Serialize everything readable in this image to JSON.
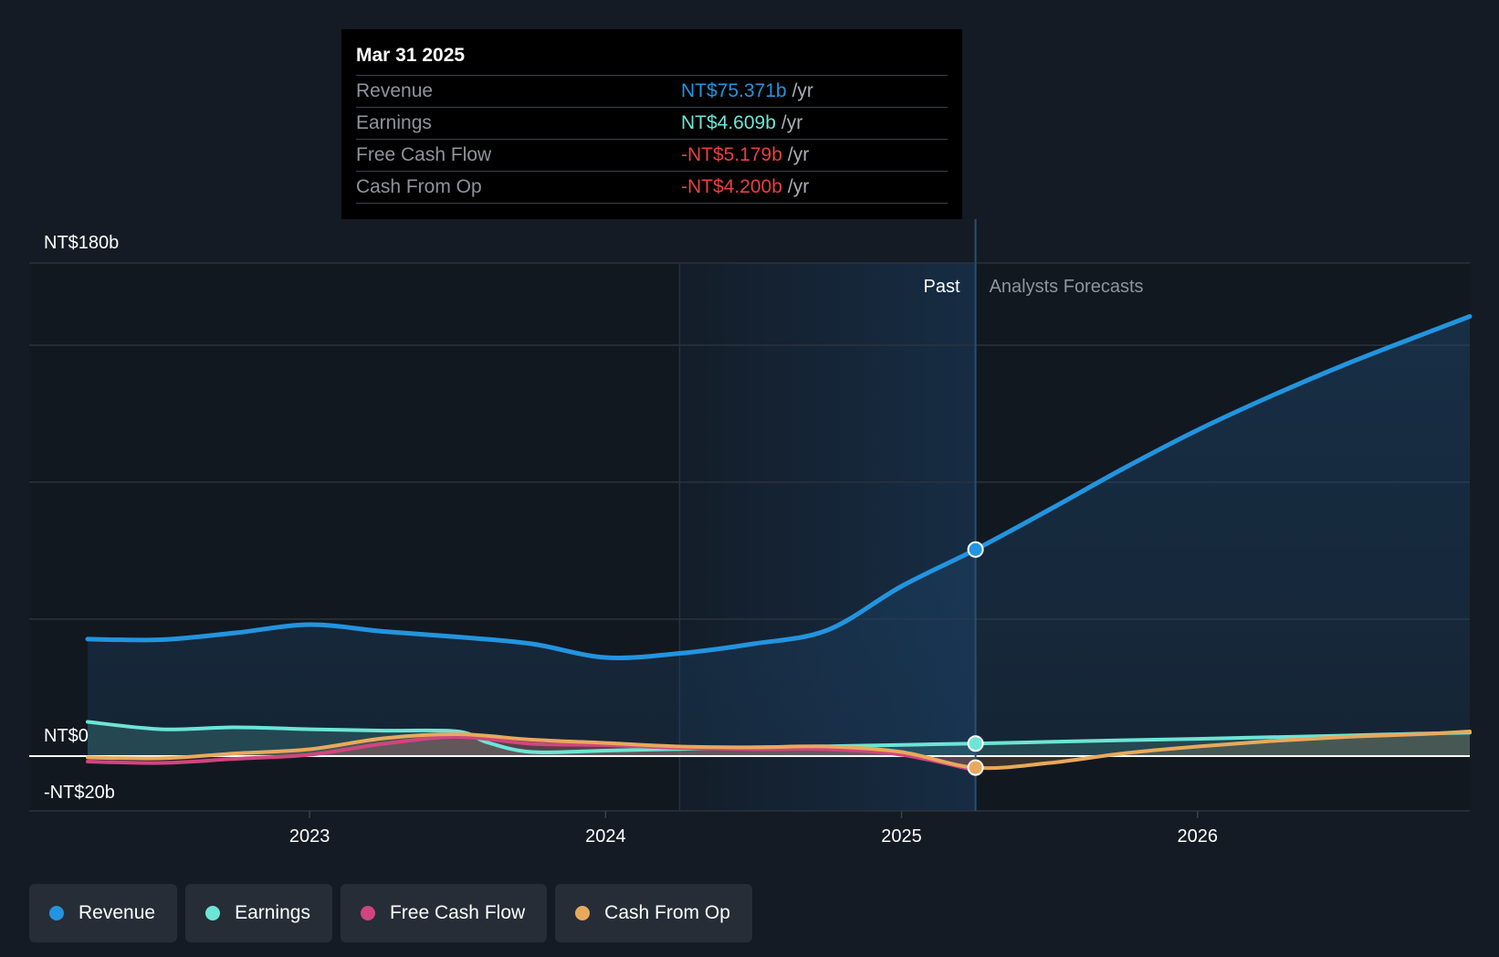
{
  "tooltip": {
    "date": "Mar 31 2025",
    "rows": [
      {
        "name": "Revenue",
        "value": "NT$75.371b",
        "unit": "/yr",
        "color": "#2394df"
      },
      {
        "name": "Earnings",
        "value": "NT$4.609b",
        "unit": "/yr",
        "color": "#6ce5d6"
      },
      {
        "name": "Free Cash Flow",
        "value": "-NT$5.179b",
        "unit": "/yr",
        "color": "#e64141"
      },
      {
        "name": "Cash From Op",
        "value": "-NT$4.200b",
        "unit": "/yr",
        "color": "#e64141"
      }
    ]
  },
  "labels": {
    "past": "Past",
    "forecast": "Analysts Forecasts"
  },
  "legend": [
    {
      "label": "Revenue",
      "color": "#2394df"
    },
    {
      "label": "Earnings",
      "color": "#6ce5d6"
    },
    {
      "label": "Free Cash Flow",
      "color": "#d1457f"
    },
    {
      "label": "Cash From Op",
      "color": "#e8a95c"
    }
  ],
  "chart_data": {
    "type": "line",
    "title": "",
    "xlabel": "",
    "ylabel": "",
    "y_tick_labels": [
      "NT$180b",
      "NT$0",
      "-NT$20b"
    ],
    "y_ticks": [
      180,
      0,
      -20
    ],
    "ylim": [
      -20,
      180
    ],
    "xlim": [
      2022.25,
      2026.92
    ],
    "x_ticks": [
      2023,
      2024,
      2025,
      2026
    ],
    "x_tick_labels": [
      "2023",
      "2024",
      "2025",
      "2026"
    ],
    "grid": true,
    "legend_position": "bottom-left",
    "past_forecast_divider": 2025.25,
    "highlight_region_start": 2024.25,
    "series": [
      {
        "name": "Revenue",
        "color": "#2394df",
        "area": true,
        "x": [
          2022.25,
          2022.5,
          2022.75,
          2023.0,
          2023.25,
          2023.5,
          2023.75,
          2024.0,
          2024.25,
          2024.5,
          2024.75,
          2025.0,
          2025.25,
          2025.5,
          2025.75,
          2026.0,
          2026.25,
          2026.5,
          2026.75,
          2026.92
        ],
        "values": [
          42.7,
          42.5,
          45.0,
          48.0,
          45.5,
          43.5,
          41.0,
          36.0,
          37.5,
          41.0,
          46.0,
          62.0,
          75.4,
          90.0,
          105.0,
          119.0,
          131.5,
          143.0,
          153.5,
          160.5
        ]
      },
      {
        "name": "Earnings",
        "color": "#6ce5d6",
        "x": [
          2022.25,
          2022.5,
          2022.75,
          2023.0,
          2023.25,
          2023.5,
          2023.6,
          2023.75,
          2024.0,
          2024.25,
          2024.5,
          2024.75,
          2025.0,
          2025.25,
          2025.5,
          2025.75,
          2026.0,
          2026.25,
          2026.5,
          2026.75,
          2026.92
        ],
        "values": [
          12.5,
          9.8,
          10.5,
          9.8,
          9.3,
          9.0,
          5.0,
          1.5,
          2.0,
          2.6,
          3.2,
          3.6,
          4.1,
          4.6,
          5.2,
          5.8,
          6.3,
          6.9,
          7.5,
          8.2,
          8.6
        ]
      },
      {
        "name": "Free Cash Flow",
        "color": "#d1457f",
        "x": [
          2022.25,
          2022.5,
          2022.75,
          2023.0,
          2023.25,
          2023.5,
          2023.75,
          2024.0,
          2024.25,
          2024.5,
          2024.75,
          2025.0,
          2025.25
        ],
        "values": [
          -2.0,
          -2.5,
          -1.0,
          0.5,
          4.5,
          7.0,
          4.5,
          4.0,
          3.0,
          2.5,
          2.5,
          0.5,
          -5.2
        ]
      },
      {
        "name": "Cash From Op",
        "color": "#e8a95c",
        "x": [
          2022.25,
          2022.5,
          2022.75,
          2023.0,
          2023.25,
          2023.5,
          2023.75,
          2024.0,
          2024.25,
          2024.5,
          2024.75,
          2025.0,
          2025.25,
          2025.5,
          2025.75,
          2026.0,
          2026.25,
          2026.5,
          2026.75,
          2026.92
        ],
        "values": [
          -0.5,
          -0.8,
          1.0,
          2.5,
          6.5,
          8.0,
          6.0,
          4.8,
          3.5,
          3.2,
          3.5,
          1.5,
          -4.2,
          -2.5,
          1.0,
          3.5,
          5.5,
          7.0,
          8.0,
          9.0
        ]
      }
    ]
  }
}
